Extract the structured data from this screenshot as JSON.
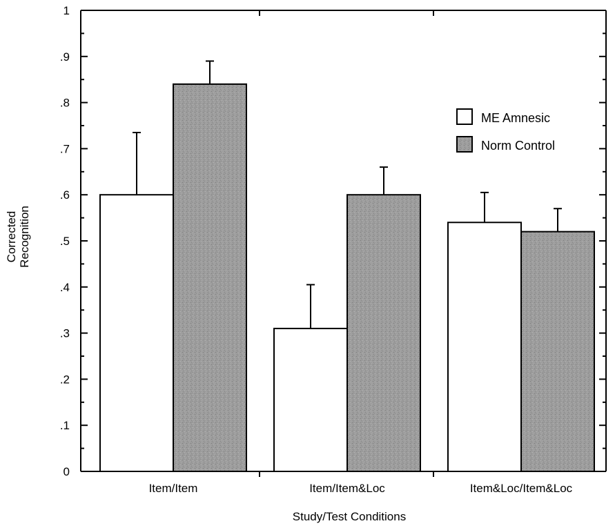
{
  "chart_data": {
    "type": "bar",
    "title": "",
    "xlabel": "Study/Test Conditions",
    "ylabel_lines": [
      "Corrected",
      "Recognition"
    ],
    "ylim": [
      0,
      1
    ],
    "yticks": [
      0,
      0.1,
      0.2,
      0.3,
      0.4,
      0.5,
      0.6,
      0.7,
      0.8,
      0.9,
      1
    ],
    "ytick_labels": [
      "0",
      ".1",
      ".2",
      ".3",
      ".4",
      ".5",
      ".6",
      ".7",
      ".8",
      ".9",
      "1"
    ],
    "categories": [
      "Item/Item",
      "Item/Item&Loc",
      "Item&Loc/Item&Loc"
    ],
    "series": [
      {
        "name": "ME Amnesic",
        "values": [
          0.6,
          0.31,
          0.54
        ],
        "error": [
          0.135,
          0.095,
          0.065
        ],
        "fill": "#ffffff"
      },
      {
        "name": "Norm Control",
        "values": [
          0.84,
          0.6,
          0.52
        ],
        "error": [
          0.05,
          0.06,
          0.05
        ],
        "fill": "#9b9b9b"
      }
    ],
    "legend_position": "top-right",
    "grid": false
  }
}
